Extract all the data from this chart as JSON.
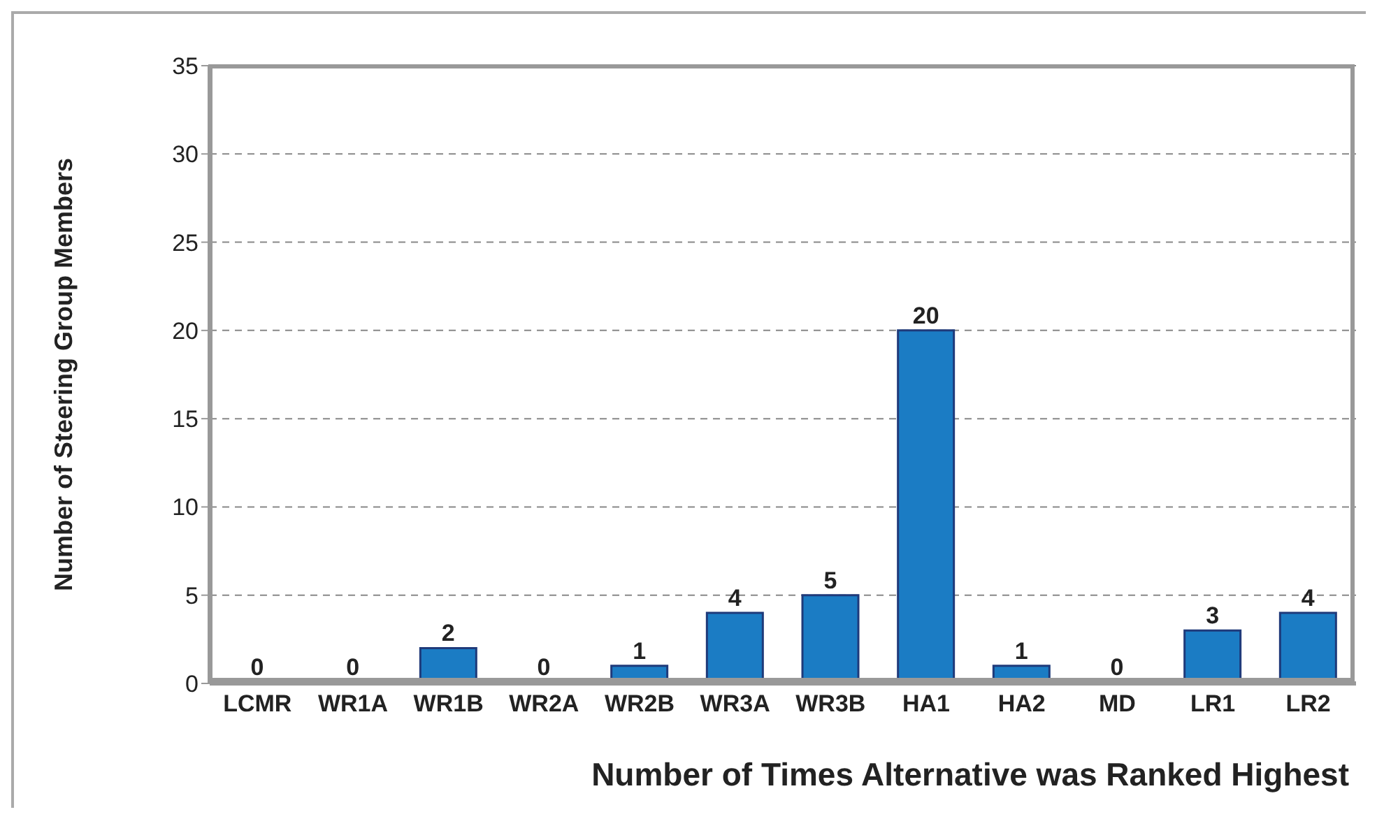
{
  "chart_data": {
    "type": "bar",
    "xlabel": "Number of Times Alternative was Ranked Highest",
    "ylabel": "Number of Steering Group Members",
    "categories": [
      "LCMR",
      "WR1A",
      "WR1B",
      "WR2A",
      "WR2B",
      "WR3A",
      "WR3B",
      "HA1",
      "HA2",
      "MD",
      "LR1",
      "LR2"
    ],
    "values": [
      0,
      0,
      2,
      0,
      1,
      4,
      5,
      20,
      1,
      0,
      3,
      4
    ],
    "color": "#1b7cc4",
    "data_labels": true,
    "ylim": [
      0,
      35
    ],
    "yticks": [
      0,
      5,
      10,
      15,
      20,
      25,
      30,
      35
    ],
    "grid": "y",
    "legend": false
  }
}
